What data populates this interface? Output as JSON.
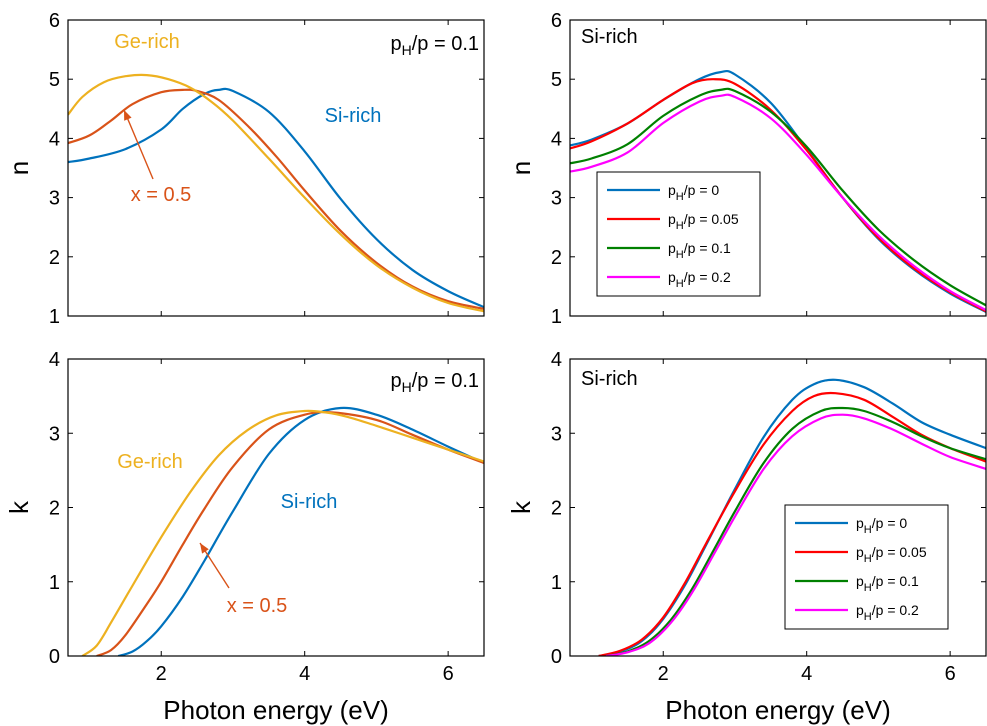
{
  "colors": {
    "si_rich": "#0072BD",
    "x05": "#D95319",
    "ge_rich": "#EDB120",
    "h0": "#0072BD",
    "h005": "#FF0000",
    "h01": "#008000",
    "h02": "#FF00FF"
  },
  "chart_data": [
    {
      "type": "line",
      "panel": "top-left",
      "xlabel": "",
      "ylabel": "n",
      "xlim": [
        0.7,
        6.5
      ],
      "ylim": [
        1,
        6
      ],
      "xticks": [
        2,
        4,
        6
      ],
      "yticks": [
        1,
        2,
        3,
        4,
        5,
        6
      ],
      "xticklabels": [
        "",
        "",
        ""
      ],
      "yticklabels": [
        "1",
        "2",
        "3",
        "4",
        "5",
        "6"
      ],
      "annotations": [
        {
          "text": "Ge-rich",
          "color": "ge_rich"
        },
        {
          "text": "Si-rich",
          "color": "si_rich"
        },
        {
          "text": "x = 0.5",
          "color": "x05"
        }
      ],
      "condition": {
        "pre": "p",
        "sub": "H",
        "post": "/p = 0.1"
      },
      "series": [
        {
          "color": "si_rich",
          "x": [
            0.7,
            1.0,
            1.5,
            2.0,
            2.3,
            2.6,
            2.8,
            3.0,
            3.5,
            4.0,
            4.5,
            5.0,
            5.5,
            6.0,
            6.5
          ],
          "y": [
            3.6,
            3.66,
            3.82,
            4.15,
            4.5,
            4.75,
            4.82,
            4.8,
            4.45,
            3.78,
            2.98,
            2.3,
            1.78,
            1.42,
            1.15
          ]
        },
        {
          "color": "x05",
          "x": [
            0.7,
            1.0,
            1.3,
            1.6,
            2.0,
            2.3,
            2.5,
            2.8,
            3.2,
            3.6,
            4.0,
            4.5,
            5.0,
            5.5,
            6.0,
            6.5
          ],
          "y": [
            3.92,
            4.05,
            4.3,
            4.58,
            4.78,
            4.82,
            4.8,
            4.65,
            4.22,
            3.7,
            3.12,
            2.44,
            1.9,
            1.5,
            1.25,
            1.12
          ]
        },
        {
          "color": "ge_rich",
          "x": [
            0.7,
            0.9,
            1.2,
            1.5,
            1.8,
            2.1,
            2.4,
            2.7,
            3.0,
            3.5,
            4.0,
            4.5,
            5.0,
            5.5,
            6.0,
            6.5
          ],
          "y": [
            4.4,
            4.7,
            4.95,
            5.05,
            5.07,
            5.0,
            4.86,
            4.62,
            4.3,
            3.66,
            3.0,
            2.38,
            1.86,
            1.48,
            1.22,
            1.08
          ]
        }
      ]
    },
    {
      "type": "line",
      "panel": "top-right",
      "xlabel": "",
      "ylabel": "n",
      "xlim": [
        0.7,
        6.5
      ],
      "ylim": [
        1,
        6
      ],
      "xticks": [
        2,
        4,
        6
      ],
      "yticks": [
        1,
        2,
        3,
        4,
        5,
        6
      ],
      "xticklabels": [
        "",
        "",
        ""
      ],
      "yticklabels": [
        "1",
        "2",
        "3",
        "4",
        "5",
        "6"
      ],
      "annotations": [
        {
          "text": "Si-rich",
          "color": "black"
        }
      ],
      "legend": {
        "placement": "center-left",
        "entries": [
          {
            "color": "h0",
            "pre": "p",
            "sub": "H",
            "post": "/p = 0"
          },
          {
            "color": "h005",
            "pre": "p",
            "sub": "H",
            "post": "/p = 0.05"
          },
          {
            "color": "h01",
            "pre": "p",
            "sub": "H",
            "post": "/p = 0.1"
          },
          {
            "color": "h02",
            "pre": "p",
            "sub": "H",
            "post": "/p = 0.2"
          }
        ]
      },
      "series": [
        {
          "color": "h0",
          "x": [
            0.7,
            1.0,
            1.5,
            2.0,
            2.5,
            2.8,
            3.0,
            3.5,
            4.0,
            4.5,
            5.0,
            5.5,
            6.0,
            6.5
          ],
          "y": [
            3.88,
            3.98,
            4.25,
            4.65,
            5.0,
            5.12,
            5.08,
            4.6,
            3.82,
            3.0,
            2.3,
            1.78,
            1.38,
            1.07
          ]
        },
        {
          "color": "h005",
          "x": [
            0.7,
            1.0,
            1.5,
            2.0,
            2.4,
            2.7,
            3.0,
            3.5,
            4.0,
            4.5,
            5.0,
            5.5,
            6.0,
            6.5
          ],
          "y": [
            3.83,
            3.95,
            4.25,
            4.65,
            4.93,
            5.0,
            4.92,
            4.48,
            3.8,
            3.0,
            2.32,
            1.8,
            1.4,
            1.08
          ]
        },
        {
          "color": "h01",
          "x": [
            0.7,
            1.0,
            1.5,
            2.0,
            2.5,
            2.8,
            3.0,
            3.5,
            4.0,
            4.5,
            5.0,
            5.5,
            6.0,
            6.5
          ],
          "y": [
            3.58,
            3.66,
            3.9,
            4.38,
            4.72,
            4.82,
            4.8,
            4.45,
            3.86,
            3.12,
            2.46,
            1.94,
            1.52,
            1.18
          ]
        },
        {
          "color": "h02",
          "x": [
            0.7,
            1.0,
            1.5,
            2.0,
            2.5,
            2.8,
            3.0,
            3.5,
            4.0,
            4.5,
            5.0,
            5.5,
            6.0,
            6.5
          ],
          "y": [
            3.44,
            3.52,
            3.76,
            4.26,
            4.62,
            4.72,
            4.7,
            4.34,
            3.72,
            3.0,
            2.36,
            1.84,
            1.42,
            1.1
          ]
        }
      ]
    },
    {
      "type": "line",
      "panel": "bottom-left",
      "xlabel": "Photon energy (eV)",
      "ylabel": "k",
      "xlim": [
        0.7,
        6.5
      ],
      "ylim": [
        0,
        4
      ],
      "xticks": [
        2,
        4,
        6
      ],
      "yticks": [
        0,
        1,
        2,
        3,
        4
      ],
      "xticklabels": [
        "2",
        "4",
        "6"
      ],
      "yticklabels": [
        "0",
        "1",
        "2",
        "3",
        "4"
      ],
      "annotations": [
        {
          "text": "Ge-rich",
          "color": "ge_rich"
        },
        {
          "text": "Si-rich",
          "color": "si_rich"
        },
        {
          "text": "x = 0.5",
          "color": "x05"
        }
      ],
      "condition": {
        "pre": "p",
        "sub": "H",
        "post": "/p = 0.1"
      },
      "series": [
        {
          "color": "si_rich",
          "x": [
            1.4,
            1.6,
            1.8,
            2.0,
            2.3,
            2.6,
            3.0,
            3.5,
            4.0,
            4.5,
            5.0,
            5.5,
            6.0,
            6.5
          ],
          "y": [
            0,
            0.06,
            0.2,
            0.4,
            0.8,
            1.28,
            1.95,
            2.72,
            3.18,
            3.34,
            3.25,
            3.05,
            2.82,
            2.6
          ]
        },
        {
          "color": "x05",
          "x": [
            1.1,
            1.3,
            1.5,
            1.8,
            2.0,
            2.3,
            2.6,
            3.0,
            3.5,
            4.0,
            4.4,
            5.0,
            5.5,
            6.0,
            6.5
          ],
          "y": [
            0,
            0.08,
            0.28,
            0.7,
            1.0,
            1.5,
            1.98,
            2.55,
            3.05,
            3.25,
            3.28,
            3.18,
            2.98,
            2.78,
            2.6
          ]
        },
        {
          "color": "ge_rich",
          "x": [
            0.9,
            1.1,
            1.3,
            1.6,
            2.0,
            2.4,
            2.8,
            3.2,
            3.6,
            4.0,
            4.3,
            4.6,
            5.0,
            5.5,
            6.0,
            6.5
          ],
          "y": [
            0,
            0.14,
            0.45,
            0.95,
            1.6,
            2.2,
            2.7,
            3.04,
            3.24,
            3.3,
            3.28,
            3.22,
            3.1,
            2.94,
            2.78,
            2.62
          ]
        }
      ]
    },
    {
      "type": "line",
      "panel": "bottom-right",
      "xlabel": "Photon energy (eV)",
      "ylabel": "k",
      "xlim": [
        0.7,
        6.5
      ],
      "ylim": [
        0,
        4
      ],
      "xticks": [
        2,
        4,
        6
      ],
      "yticks": [
        0,
        1,
        2,
        3,
        4
      ],
      "xticklabels": [
        "2",
        "4",
        "6"
      ],
      "yticklabels": [
        "0",
        "1",
        "2",
        "3",
        "4"
      ],
      "annotations": [
        {
          "text": "Si-rich",
          "color": "black"
        }
      ],
      "legend": {
        "placement": "bottom-right",
        "entries": [
          {
            "color": "h0",
            "pre": "p",
            "sub": "H",
            "post": "/p = 0"
          },
          {
            "color": "h005",
            "pre": "p",
            "sub": "H",
            "post": "/p = 0.05"
          },
          {
            "color": "h01",
            "pre": "p",
            "sub": "H",
            "post": "/p = 0.1"
          },
          {
            "color": "h02",
            "pre": "p",
            "sub": "H",
            "post": "/p = 0.2"
          }
        ]
      },
      "series": [
        {
          "color": "h0",
          "x": [
            1.1,
            1.4,
            1.7,
            2.0,
            2.3,
            2.6,
            3.0,
            3.4,
            3.8,
            4.1,
            4.4,
            4.8,
            5.2,
            5.6,
            6.0,
            6.5
          ],
          "y": [
            0,
            0.06,
            0.2,
            0.5,
            0.95,
            1.5,
            2.25,
            2.95,
            3.45,
            3.66,
            3.72,
            3.62,
            3.4,
            3.15,
            2.98,
            2.8
          ]
        },
        {
          "color": "h005",
          "x": [
            1.1,
            1.4,
            1.7,
            2.0,
            2.3,
            2.6,
            3.0,
            3.4,
            3.8,
            4.1,
            4.4,
            4.8,
            5.2,
            5.6,
            6.0,
            6.5
          ],
          "y": [
            0,
            0.07,
            0.22,
            0.52,
            0.98,
            1.52,
            2.22,
            2.85,
            3.3,
            3.5,
            3.54,
            3.45,
            3.22,
            2.98,
            2.8,
            2.62
          ]
        },
        {
          "color": "h01",
          "x": [
            1.2,
            1.5,
            1.8,
            2.1,
            2.4,
            2.7,
            3.0,
            3.4,
            3.8,
            4.2,
            4.5,
            4.8,
            5.2,
            5.6,
            6.0,
            6.5
          ],
          "y": [
            0,
            0.06,
            0.2,
            0.48,
            0.9,
            1.42,
            1.95,
            2.6,
            3.06,
            3.3,
            3.34,
            3.3,
            3.15,
            2.96,
            2.8,
            2.65
          ]
        },
        {
          "color": "h02",
          "x": [
            1.2,
            1.5,
            1.8,
            2.1,
            2.4,
            2.7,
            3.0,
            3.4,
            3.8,
            4.2,
            4.5,
            4.8,
            5.2,
            5.6,
            6.0,
            6.5
          ],
          "y": [
            0,
            0.05,
            0.17,
            0.44,
            0.85,
            1.36,
            1.88,
            2.52,
            2.96,
            3.2,
            3.25,
            3.2,
            3.05,
            2.86,
            2.68,
            2.52
          ]
        }
      ]
    }
  ]
}
